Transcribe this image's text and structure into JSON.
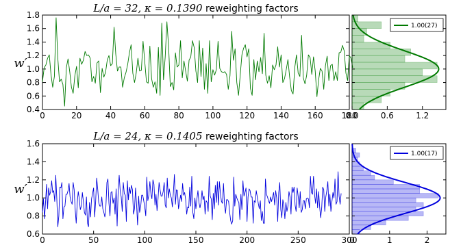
{
  "chart_data": [
    {
      "type": "line",
      "title_math": "L/a = 32, κ = 0.1390",
      "title_text": " reweighting factors",
      "ylabel": "w′",
      "xlim": [
        0,
        180
      ],
      "ylim": [
        0.4,
        1.8
      ],
      "xticks": [
        "0",
        "20",
        "40",
        "60",
        "80",
        "100",
        "120",
        "140",
        "160",
        "180"
      ],
      "yticks": [
        "0.4",
        "0.6",
        "0.8",
        "1.0",
        "1.2",
        "1.4",
        "1.6",
        "1.8"
      ],
      "color": "#007a00",
      "series_seed": 7,
      "series": [
        {
          "values": [
            0.81,
            1.02,
            1.06,
            1.16,
            1.21,
            0.92,
            0.73,
            0.89,
            1.76,
            1.16,
            0.81,
            0.85,
            0.77,
            0.45,
            1.02,
            1.15,
            0.96,
            0.73,
            0.64,
            0.9,
            1.04,
            0.72,
            1.16,
            1.07,
            1.13,
            1.26,
            1.2,
            1.21,
            1.16,
            0.81,
            0.89,
            0.79,
            1.09,
            1.12,
            0.65,
            1.01,
            0.88,
            0.95,
            1.13,
            1.2,
            1.05,
            1.08,
            1.62,
            1.22,
            0.97,
            1.03,
            1.03,
            0.73,
            0.87,
            0.95,
            1.07,
            1.24,
            1.36,
            0.94,
            0.8,
            0.94,
            1.16,
            0.97,
            0.98,
            1.41,
            1.11,
            0.81,
            0.79,
            1.34,
            0.86,
            0.73,
            0.81,
            0.64,
            1.32,
            0.61,
            1.68,
            0.84,
            1.18,
            1.7,
            1.33,
            0.74,
            0.8,
            0.69,
            1.24,
            1.03,
            1.06,
            1.42,
            0.87,
            1.12,
            0.97,
            0.82,
            1.13,
            1.18,
            1.42,
            1.32,
            0.97,
            0.8,
            1.42,
            0.89,
            1.31,
            0.7,
            1.08,
            0.64,
            1.42,
            0.81,
            0.99,
            0.91,
            0.99,
            1.41,
            1.01,
            0.96,
            0.95,
            0.96,
            0.92,
            0.7,
            0.9,
            1.56,
            1.13,
            1.3,
            0.8,
            0.61,
            0.91,
            1.21,
            1.31,
            1.36,
            1.18,
            1.3,
            0.71,
            0.61,
            1.14,
            0.84,
            1.12,
            0.96,
            1.17,
            0.93,
            1.53,
            0.91,
            0.79,
            0.9,
            0.72,
            1.06,
            0.99,
            1.06,
            1.33,
            1.03,
            1.21,
            0.8,
            0.86,
            0.99,
            1.14,
            0.88,
            0.68,
            0.63,
            1.02,
            1.21,
            0.94,
            0.89,
            1.5,
            0.87,
            0.78,
            0.91,
            1.21,
            1.17,
            0.92,
            1.18,
            0.97,
            0.59,
            0.84,
            1.01,
            0.97,
            0.7,
            1.05,
            1.19,
            0.83,
            1.05,
            1.07,
            0.83,
            0.96,
            0.83,
            1.24,
            1.25,
            1.35,
            1.27,
            0.94,
            0.83,
            1.2,
            1.16,
            1.02
          ]
        }
      ],
      "hist": {
        "bins": [
          0.4,
          0.5,
          0.6,
          0.7,
          0.8,
          0.9,
          1.0,
          1.1,
          1.2,
          1.3,
          1.4,
          1.5,
          1.6,
          1.7,
          1.8
        ],
        "density": [
          0.2,
          0.5,
          0.65,
          0.9,
          1.45,
          1.2,
          1.45,
          0.9,
          1.0,
          0.65,
          0.2,
          0.25,
          0.5,
          0.1
        ],
        "xlim": [
          0,
          1.6
        ],
        "xticks": [
          "0.0",
          "0.6",
          "1.2"
        ],
        "fit_mean": 1.0,
        "fit_sigma": 0.27
      },
      "legend_label": "1.00(27)",
      "legend_position": "top-right"
    },
    {
      "type": "line",
      "title_math": "L/a = 24, κ = 0.1405",
      "title_text": " reweighting factors",
      "ylabel": "w′",
      "xlim": [
        0,
        300
      ],
      "ylim": [
        0.6,
        1.6
      ],
      "xticks": [
        "0",
        "50",
        "100",
        "150",
        "200",
        "250",
        "300"
      ],
      "yticks": [
        "0.6",
        "0.8",
        "1.0",
        "1.2",
        "1.4",
        "1.6"
      ],
      "color": "#0000dd",
      "series_seed": 23,
      "series": [
        {
          "values": [
            0.84,
            0.99,
            0.77,
            0.95,
            1.15,
            0.88,
            1.11,
            1.03,
            1.07,
            1.19,
            1.06,
            1.08,
            0.96,
            1.25,
            1.0,
            0.68,
            0.8,
            1.12,
            1.11,
            1.17,
            0.77,
            0.9,
            0.91,
            1.04,
            1.04,
            1.08,
            1.16,
            1.01,
            0.96,
            0.93,
            1.17,
            1.09,
            0.87,
            0.72,
            0.95,
            1.07,
            0.99,
            0.87,
            0.91,
            1.06,
            0.96,
            0.84,
            0.81,
            1.01,
            0.72,
            0.68,
            0.95,
            0.79,
            0.99,
            1.05,
            1.11,
            0.79,
            0.96,
            1.22,
            1.1,
            0.95,
            0.91,
            0.91,
            1.01,
            0.88,
            0.84,
            0.79,
            0.9,
            1.17,
            1.21,
            0.94,
            0.8,
            1.06,
            1.07,
            0.94,
            1.0,
            0.82,
            1.1,
            0.69,
            1.07,
            1.25,
            1.08,
            1.01,
            0.85,
            1.17,
            1.05,
            1.03,
            0.74,
            1.19,
            0.98,
            1.12,
            1.05,
            1.14,
            1.09,
            0.82,
            0.88,
            1.11,
            0.93,
            0.7,
            1.02,
            0.84,
            0.9,
            1.03,
            1.03,
            0.97,
            0.9,
            0.8,
            1.23,
            0.97,
            1.03,
            1.18,
            1.05,
            0.99,
            1.2,
            1.15,
            0.92,
            1.04,
            0.86,
            0.99,
            1.17,
            1.09,
            1.02,
            1.02,
            1.07,
            1.17,
            0.92,
            0.89,
            1.22,
            1.0,
            1.1,
            1.03,
            1.0,
            0.9,
            1.06,
            1.26,
            0.93,
            1.09,
            1.08,
            0.88,
            0.95,
            1.03,
            0.96,
            1.16,
            1.03,
            1.06,
            0.98,
            0.82,
            0.9,
            0.89,
            1.12,
            0.91,
            1.24,
            0.84,
            0.77,
            1.0,
            0.88,
            0.99,
            1.08,
            0.95,
            0.89,
            0.95,
            1.08,
            0.98,
            1.02,
            0.82,
            0.97,
            0.95,
            0.85,
            1.24,
            1.02,
            0.99,
            0.76,
            1.05,
            0.88,
            1.14,
            0.95,
            1.18,
            0.92,
            1.18,
            1.05,
            0.96,
            0.94,
            1.16,
            0.92,
            0.83,
            0.98,
            0.98,
            0.96,
            0.84,
            0.75,
            0.71,
            0.75,
            1.23,
            0.91,
            1.04,
            1.0,
            0.97,
            0.95,
            0.76,
            1.04,
            0.87,
            1.19,
            1.02,
            1.06,
            1.11,
            0.74,
            1.01,
            1.1,
            1.08,
            1.01,
            1.01,
            0.72,
            0.97,
            0.95,
            1.08,
            1.01,
            0.94,
            0.88,
            0.97,
            0.75,
            0.85,
            0.72,
            0.72,
            1.21,
            1.04,
            1.01,
            0.97,
            0.94,
            1.01,
            0.96,
            1.01,
            1.06,
            0.92,
            1.08,
            1.0,
            0.74,
            1.06,
            1.17,
            0.87,
            0.78,
            0.98,
            0.92,
            0.77,
            0.95,
            0.85,
            0.91,
            1.07,
            1.01,
            0.82,
            1.12,
            1.06,
            1.12,
            0.92,
            0.85,
            1.11,
            1.02,
            0.89,
            1.07,
            0.84,
            0.87,
            0.97,
            0.97,
            0.88,
            0.99,
            1.0,
            0.99,
            0.89,
            1.24,
            1.06,
            1.04,
            1.24,
            1.04,
            0.94,
            1.1,
            0.89,
            1.07,
            0.9,
            0.78,
            0.89,
            1.12,
            1.09,
            0.85,
            1.01,
            1.08,
            1.18,
            0.91,
            1.04,
            0.85,
            0.96,
            1.06,
            1.0,
            1.21,
            0.93,
            0.96,
            1.29,
            1.02,
            0.93,
            1.05
          ]
        }
      ],
      "hist": {
        "bins": [
          0.6,
          0.65,
          0.7,
          0.75,
          0.8,
          0.85,
          0.9,
          0.95,
          1.0,
          1.05,
          1.1,
          1.15,
          1.2,
          1.25,
          1.3,
          1.35,
          1.4,
          1.45,
          1.5,
          1.55
        ],
        "density": [
          0.2,
          0.5,
          0.9,
          1.5,
          1.9,
          1.7,
          1.9,
          1.7,
          2.3,
          1.8,
          1.8,
          1.1,
          0.6,
          0.5,
          0.3,
          0.2,
          0.15,
          0.2,
          0.1
        ],
        "xlim": [
          0,
          2.5
        ],
        "xticks": [
          "0",
          "1",
          "2"
        ],
        "fit_mean": 1.0,
        "fit_sigma": 0.17
      },
      "legend_label": "1.00(17)",
      "legend_position": "top-right"
    }
  ]
}
